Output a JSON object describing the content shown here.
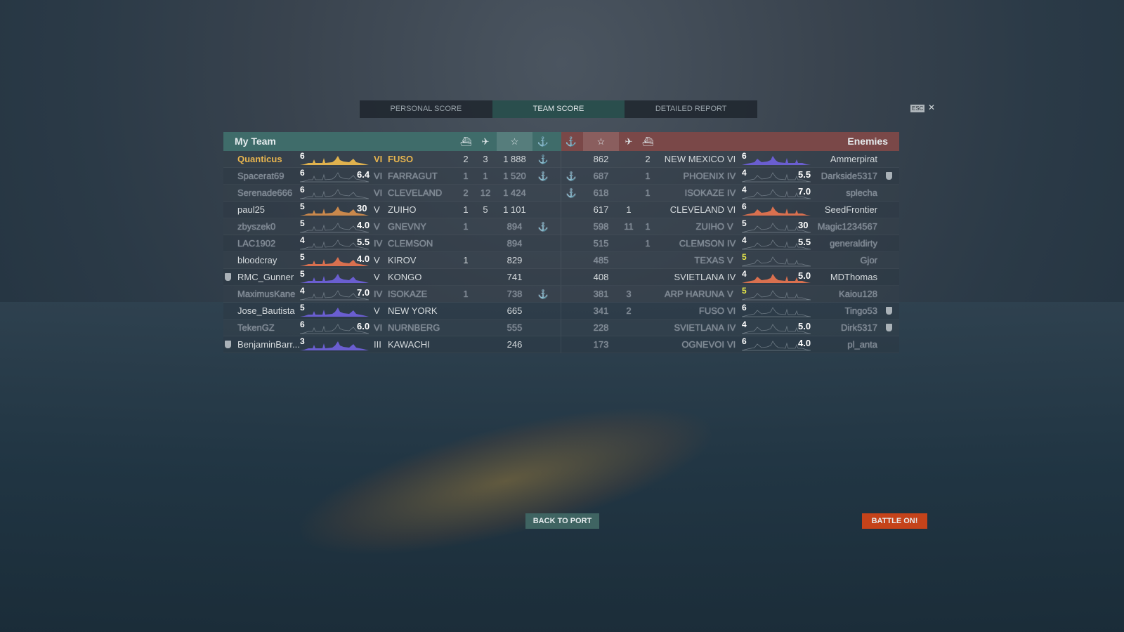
{
  "tabs": [
    "PERSONAL SCORE",
    "TEAM SCORE",
    "DETAILED REPORT"
  ],
  "active_tab": 1,
  "esc_label": "ESC",
  "my_team": {
    "title": "My Team",
    "header_color": "#3f6c6a",
    "rows": [
      {
        "name": "Quanticus",
        "level": "6",
        "sil": "gold",
        "extra": "",
        "tier": "VI",
        "ship": "FUSO",
        "a": "2",
        "b": "3",
        "xp": "1 888",
        "anchor": true,
        "dead": false,
        "self": true,
        "badge": false
      },
      {
        "name": "Spacerat69",
        "level": "6",
        "sil": "dim",
        "extra": "6.4",
        "tier": "VI",
        "ship": "FARRAGUT",
        "a": "1",
        "b": "1",
        "xp": "1 520",
        "anchor": true,
        "dead": true,
        "badge": false
      },
      {
        "name": "Serenade666",
        "level": "6",
        "sil": "dim",
        "extra": "",
        "tier": "VI",
        "ship": "CLEVELAND",
        "a": "2",
        "b": "12",
        "xp": "1 424",
        "anchor": false,
        "dead": true,
        "badge": false
      },
      {
        "name": "paul25",
        "level": "5",
        "sil": "tan",
        "extra": "30",
        "tier": "V",
        "ship": "ZUIHO",
        "a": "1",
        "b": "5",
        "xp": "1 101",
        "anchor": false,
        "dead": false,
        "badge": false
      },
      {
        "name": "zbyszek0",
        "level": "5",
        "sil": "dim",
        "extra": "4.0",
        "tier": "V",
        "ship": "GNEVNY",
        "a": "1",
        "b": "",
        "xp": "894",
        "anchor": true,
        "dead": true,
        "badge": false
      },
      {
        "name": "LAC1902",
        "level": "4",
        "sil": "dim",
        "extra": "5.5",
        "tier": "IV",
        "ship": "CLEMSON",
        "a": "",
        "b": "",
        "xp": "894",
        "anchor": false,
        "dead": true,
        "badge": false
      },
      {
        "name": "bloodcray",
        "level": "5",
        "sil": "orange",
        "extra": "4.0",
        "tier": "V",
        "ship": "KIROV",
        "a": "1",
        "b": "",
        "xp": "829",
        "anchor": false,
        "dead": false,
        "badge": false
      },
      {
        "name": "RMC_Gunner",
        "level": "5",
        "sil": "blue",
        "extra": "",
        "tier": "V",
        "ship": "KONGO",
        "a": "",
        "b": "",
        "xp": "741",
        "anchor": false,
        "dead": false,
        "badge": true
      },
      {
        "name": "MaximusKane",
        "level": "4",
        "sil": "dim",
        "extra": "7.0",
        "tier": "IV",
        "ship": "ISOKAZE",
        "a": "1",
        "b": "",
        "xp": "738",
        "anchor": true,
        "dead": true,
        "badge": false
      },
      {
        "name": "Jose_Bautista",
        "level": "5",
        "sil": "blue",
        "extra": "",
        "tier": "V",
        "ship": "NEW YORK",
        "a": "",
        "b": "",
        "xp": "665",
        "anchor": false,
        "dead": false,
        "badge": false
      },
      {
        "name": "TekenGZ",
        "level": "6",
        "sil": "dim",
        "extra": "6.0",
        "tier": "VI",
        "ship": "NURNBERG",
        "a": "",
        "b": "",
        "xp": "555",
        "anchor": false,
        "dead": true,
        "badge": false
      },
      {
        "name": "BenjaminBarr...",
        "level": "3",
        "sil": "blue",
        "extra": "",
        "tier": "III",
        "ship": "KAWACHI",
        "a": "",
        "b": "",
        "xp": "246",
        "anchor": false,
        "dead": false,
        "badge": true
      }
    ]
  },
  "enemies": {
    "title": "Enemies",
    "header_color": "#7a4848",
    "rows": [
      {
        "name": "Ammerpirat",
        "level": "6",
        "sil": "blue",
        "extra": "",
        "tier": "VI",
        "ship": "NEW MEXICO",
        "a": "",
        "b": "2",
        "xp": "862",
        "anchor": false,
        "dead": false,
        "badge": false
      },
      {
        "name": "Darkside5317",
        "level": "4",
        "sil": "dim",
        "extra": "5.5",
        "tier": "IV",
        "ship": "PHOENIX",
        "a": "",
        "b": "1",
        "xp": "687",
        "anchor": true,
        "dead": true,
        "badge": true
      },
      {
        "name": "splecha",
        "level": "4",
        "sil": "dim",
        "extra": "7.0",
        "tier": "IV",
        "ship": "ISOKAZE",
        "a": "",
        "b": "1",
        "xp": "618",
        "anchor": true,
        "dead": true,
        "badge": false
      },
      {
        "name": "SeedFrontier",
        "level": "6",
        "sil": "orange",
        "extra": "",
        "tier": "VI",
        "ship": "CLEVELAND",
        "a": "1",
        "b": "",
        "xp": "617",
        "anchor": false,
        "dead": false,
        "badge": false
      },
      {
        "name": "Magic1234567",
        "level": "5",
        "sil": "dim",
        "extra": "30",
        "tier": "V",
        "ship": "ZUIHO",
        "a": "11",
        "b": "1",
        "xp": "598",
        "anchor": false,
        "dead": true,
        "badge": false
      },
      {
        "name": "generaldirty",
        "level": "4",
        "sil": "dim",
        "extra": "5.5",
        "tier": "IV",
        "ship": "CLEMSON",
        "a": "",
        "b": "1",
        "xp": "515",
        "anchor": false,
        "dead": true,
        "badge": false
      },
      {
        "name": "Gjor",
        "level": "5",
        "level_color": "#e6e64a",
        "sil": "dim",
        "extra": "",
        "tier": "V",
        "ship": "TEXAS",
        "a": "",
        "b": "",
        "xp": "485",
        "anchor": false,
        "dead": true,
        "badge": false
      },
      {
        "name": "MDThomas",
        "level": "4",
        "sil": "orange",
        "extra": "5.0",
        "tier": "IV",
        "ship": "SVIETLANA",
        "a": "",
        "b": "",
        "xp": "408",
        "anchor": false,
        "dead": false,
        "badge": false
      },
      {
        "name": "Kaiou128",
        "level": "5",
        "level_color": "#e6e64a",
        "sil": "dim",
        "extra": "",
        "tier": "V",
        "ship": "ARP HARUNA",
        "a": "3",
        "b": "",
        "xp": "381",
        "anchor": false,
        "dead": true,
        "badge": false
      },
      {
        "name": "Tingo53",
        "level": "6",
        "sil": "dim",
        "extra": "",
        "tier": "VI",
        "ship": "FUSO",
        "a": "2",
        "b": "",
        "xp": "341",
        "anchor": false,
        "dead": true,
        "badge": true
      },
      {
        "name": "Dirk5317",
        "level": "4",
        "sil": "dim",
        "extra": "5.0",
        "tier": "IV",
        "ship": "SVIETLANA",
        "a": "",
        "b": "",
        "xp": "228",
        "anchor": false,
        "dead": true,
        "badge": true
      },
      {
        "name": "pl_anta",
        "level": "6",
        "sil": "dim",
        "extra": "4.0",
        "tier": "VI",
        "ship": "OGNEVOI",
        "a": "",
        "b": "",
        "xp": "173",
        "anchor": false,
        "dead": true,
        "badge": false
      }
    ]
  },
  "icons": {
    "ship": "ship-kills-icon",
    "planes": "planes-icon",
    "xp": "star-icon",
    "base": "anchor-icon"
  },
  "silhouette_colors": {
    "gold": "#e0b24e",
    "tan": "#c9884c",
    "orange": "#d9704f",
    "blue": "#6a5ed0",
    "dim": "#8a96a0"
  },
  "buttons": {
    "back": "BACK TO PORT",
    "battle": "BATTLE ON!"
  },
  "colors": {
    "battle_button": "#c5431a",
    "back_button": "#3f6462"
  }
}
